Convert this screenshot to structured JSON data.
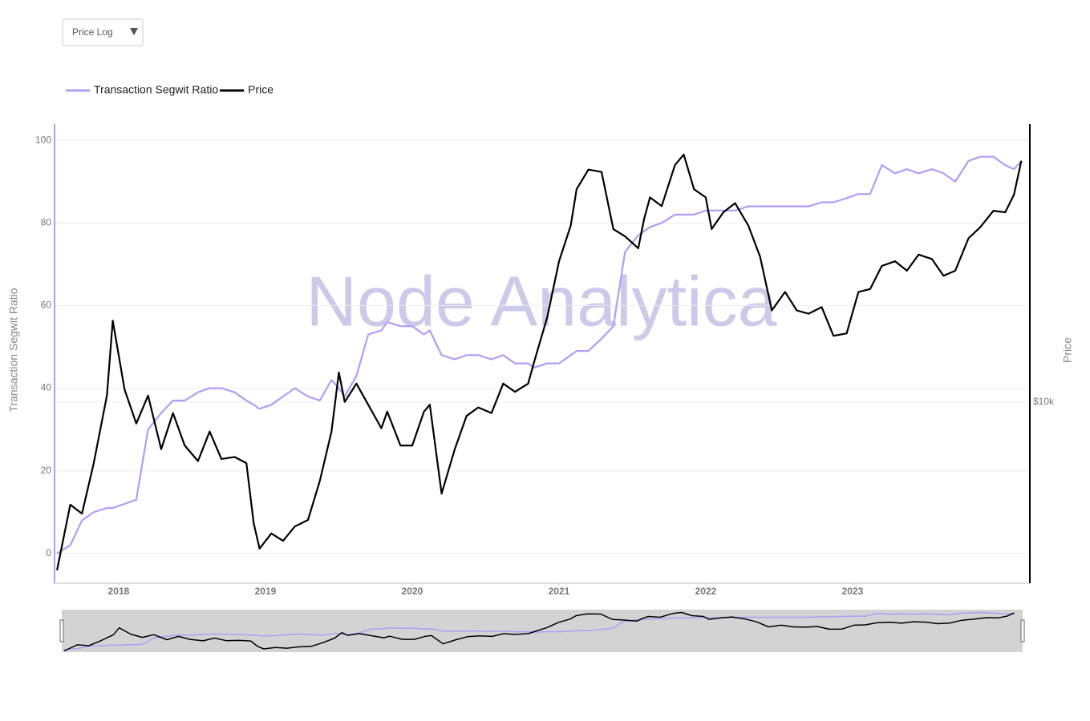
{
  "controls": {
    "price_scale": "Price Log"
  },
  "chart_data": {
    "type": "line",
    "watermark": "Node Analytica",
    "y_label": "Transaction Segwit Ratio",
    "y2_label": "Price",
    "x": [
      2017.58,
      2017.67,
      2017.75,
      2017.83,
      2017.92,
      2017.96,
      2018.04,
      2018.12,
      2018.2,
      2018.29,
      2018.37,
      2018.45,
      2018.54,
      2018.62,
      2018.7,
      2018.79,
      2018.87,
      2018.92,
      2018.96,
      2019.04,
      2019.12,
      2019.2,
      2019.29,
      2019.37,
      2019.45,
      2019.5,
      2019.54,
      2019.62,
      2019.7,
      2019.79,
      2019.83,
      2019.92,
      2020.0,
      2020.08,
      2020.12,
      2020.2,
      2020.29,
      2020.37,
      2020.45,
      2020.54,
      2020.62,
      2020.7,
      2020.79,
      2020.83,
      2020.92,
      2021.0,
      2021.08,
      2021.12,
      2021.2,
      2021.29,
      2021.37,
      2021.45,
      2021.54,
      2021.58,
      2021.62,
      2021.7,
      2021.79,
      2021.85,
      2021.92,
      2022.0,
      2022.04,
      2022.12,
      2022.2,
      2022.29,
      2022.37,
      2022.45,
      2022.54,
      2022.62,
      2022.7,
      2022.79,
      2022.87,
      2022.96,
      2023.04,
      2023.12,
      2023.2,
      2023.29,
      2023.37,
      2023.45,
      2023.54,
      2023.62,
      2023.7,
      2023.79,
      2023.87,
      2023.96,
      2024.04,
      2024.1,
      2024.15
    ],
    "series": [
      {
        "name": "Transaction Segwit Ratio",
        "color": "#b19cf7",
        "axis": "y",
        "values": [
          0,
          2,
          8,
          10,
          11,
          11,
          12,
          13,
          30,
          34,
          37,
          37,
          39,
          40,
          40,
          39,
          37,
          36,
          35,
          36,
          38,
          40,
          38,
          37,
          42,
          40,
          38,
          43,
          53,
          54,
          56,
          55,
          55,
          53,
          54,
          48,
          47,
          48,
          48,
          47,
          48,
          46,
          46,
          45,
          46,
          46,
          48,
          49,
          49,
          52,
          55,
          73,
          77,
          78,
          79,
          80,
          82,
          82,
          82,
          83,
          83,
          83,
          83,
          84,
          84,
          84,
          84,
          84,
          84,
          85,
          85,
          86,
          87,
          87,
          94,
          92,
          93,
          92,
          93,
          92,
          90,
          95,
          96,
          96,
          94,
          93,
          95
        ]
      },
      {
        "name": "Price",
        "color": "#000000",
        "axis": "y2",
        "values": [
          2800,
          4600,
          4300,
          6300,
          10500,
          18500,
          11000,
          8500,
          10500,
          7000,
          9200,
          7200,
          6400,
          8000,
          6500,
          6600,
          6300,
          4000,
          3300,
          3700,
          3500,
          3900,
          4100,
          5500,
          8000,
          12500,
          10000,
          11500,
          9800,
          8200,
          9300,
          7200,
          7200,
          9300,
          9800,
          5000,
          7000,
          9000,
          9600,
          9200,
          11500,
          10800,
          11500,
          13500,
          19000,
          29000,
          38000,
          50000,
          58000,
          57000,
          37000,
          35000,
          32000,
          40000,
          47000,
          44000,
          60000,
          65000,
          50000,
          47000,
          37000,
          42000,
          45000,
          38000,
          30000,
          20000,
          23000,
          20000,
          19500,
          20500,
          16500,
          16800,
          23000,
          23500,
          28000,
          29000,
          27000,
          30500,
          29500,
          26000,
          27000,
          34500,
          37500,
          42500,
          42000,
          48000,
          62000
        ]
      }
    ],
    "xlim": [
      2017.563,
      2024.208
    ],
    "xticks": [
      2018,
      2019,
      2020,
      2021,
      2022,
      2023
    ],
    "ylim": [
      -7.2,
      103.9
    ],
    "yticks": [
      0,
      20,
      40,
      60,
      80,
      100
    ],
    "y2lim": [
      2540,
      81800
    ],
    "y2ticks": [
      {
        "value": 10000,
        "label": "$10k"
      }
    ],
    "y2_log": true,
    "grid": true,
    "range_slider": true
  }
}
